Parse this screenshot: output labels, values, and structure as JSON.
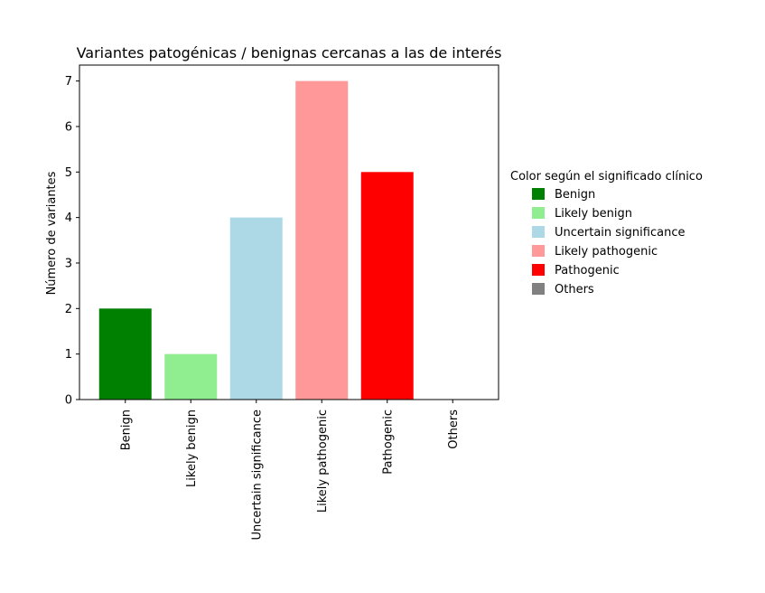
{
  "chart_data": {
    "type": "bar",
    "title": "Variantes patogénicas / benignas cercanas a las de interés",
    "xlabel": "",
    "ylabel": "Número de variantes",
    "categories": [
      "Benign",
      "Likely benign",
      "Uncertain significance",
      "Likely pathogenic",
      "Pathogenic",
      "Others"
    ],
    "values": [
      2,
      1,
      4,
      7,
      5,
      0
    ],
    "colors": [
      "#008000",
      "#90ee90",
      "#add8e6",
      "#ff9999",
      "#ff0000",
      "#808080"
    ],
    "ylim": [
      0,
      7.35
    ],
    "yticks": [
      0,
      1,
      2,
      3,
      4,
      5,
      6,
      7
    ],
    "grid": false,
    "legend": {
      "title": "Color según el significado clínico",
      "placement": "outside-right",
      "entries": [
        {
          "label": "Benign",
          "color": "#008000"
        },
        {
          "label": "Likely benign",
          "color": "#90ee90"
        },
        {
          "label": "Uncertain significance",
          "color": "#add8e6"
        },
        {
          "label": "Likely pathogenic",
          "color": "#ff9999"
        },
        {
          "label": "Pathogenic",
          "color": "#ff0000"
        },
        {
          "label": "Others",
          "color": "#808080"
        }
      ]
    }
  }
}
